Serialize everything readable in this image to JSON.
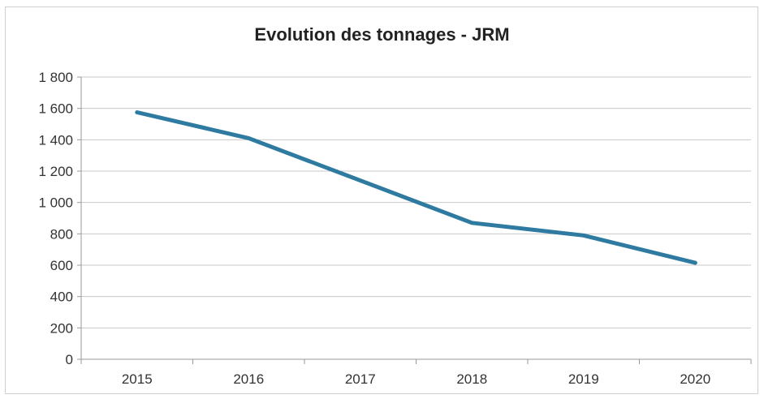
{
  "chart_data": {
    "type": "line",
    "title": "Evolution des tonnages - JRM",
    "categories": [
      "2015",
      "2016",
      "2017",
      "2018",
      "2019",
      "2020"
    ],
    "series": [
      {
        "values": [
          1575,
          1410,
          1140,
          870,
          790,
          615
        ],
        "color": "#2e7aa0"
      }
    ],
    "ylim": [
      0,
      1800
    ],
    "yticks": [
      0,
      200,
      400,
      600,
      800,
      1000,
      1200,
      1400,
      1600,
      1800
    ],
    "ytick_labels": [
      "0",
      "200",
      "400",
      "600",
      "800",
      "1 000",
      "1 200",
      "1 400",
      "1 600",
      "1 800"
    ],
    "grid": true,
    "legend": "none",
    "gridline_color": "#c8c8c8"
  }
}
